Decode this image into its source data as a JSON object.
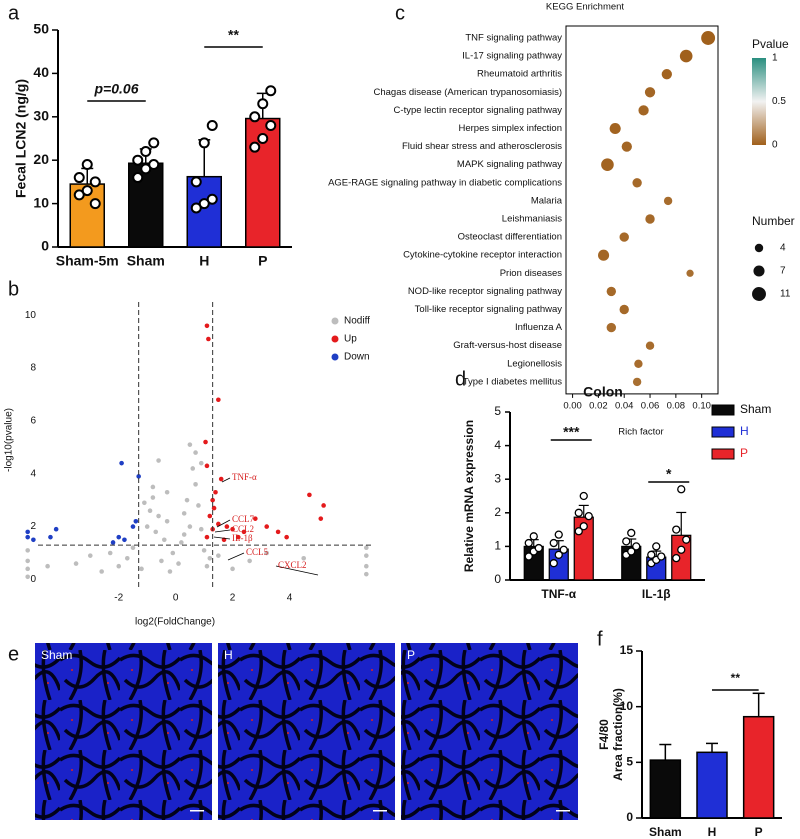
{
  "chart_data": [
    {
      "panel": "a",
      "type": "bar",
      "ylabel": "Fecal LCN2 (ng/g)",
      "categories": [
        "Sham-5m",
        "Sham",
        "H",
        "P"
      ],
      "values": [
        14.5,
        19.3,
        16.2,
        29.6
      ],
      "errors": [
        3.6,
        3.3,
        8.5,
        5.8
      ],
      "colors": [
        "#f39a1e",
        "#0a0a0a",
        "#1f2fd6",
        "#e8242a"
      ],
      "points": [
        [
          12,
          13,
          15,
          16,
          19,
          10
        ],
        [
          16,
          18,
          19,
          20,
          22,
          24
        ],
        [
          9,
          10,
          11,
          15,
          24,
          28
        ],
        [
          23,
          25,
          28,
          30,
          33,
          36
        ]
      ],
      "ylim": [
        0,
        50
      ],
      "yticks": [
        0,
        10,
        20,
        30,
        40,
        50
      ],
      "annotations": [
        "p=0.06",
        "**"
      ]
    },
    {
      "panel": "b",
      "type": "scatter",
      "xlabel": "log2(FoldChange)",
      "ylabel": "-log10(pvalue)",
      "xlim": [
        -5.4,
        6.9
      ],
      "xticks": [
        -2,
        0,
        2,
        4
      ],
      "ylim": [
        -0.4,
        10.5
      ],
      "yticks": [
        0,
        2,
        4,
        6,
        8,
        10
      ],
      "thresholds": {
        "x": [
          -1.3,
          1.3
        ],
        "y": 1.3
      },
      "legend": "top-right",
      "series": [
        {
          "name": "Nodiff",
          "color": "#bdbdbd",
          "x": [
            -5.2,
            -5.2,
            -5.2,
            -5.2,
            6.7,
            6.7,
            6.7,
            6.7,
            -3.5,
            -3.0,
            -2.6,
            -2.3,
            -2.0,
            -1.7,
            -1.5,
            -1.2,
            -1.0,
            -0.9,
            -0.8,
            -0.7,
            -0.6,
            -0.5,
            -0.4,
            -0.3,
            -0.2,
            -0.1,
            0.1,
            0.2,
            0.3,
            0.4,
            0.5,
            0.6,
            0.7,
            0.8,
            0.9,
            1.0,
            1.1,
            1.2,
            1.5,
            2.0,
            2.6,
            3.2,
            -0.6,
            -0.8,
            0.7,
            0.5,
            -0.3,
            0.3,
            -1.1,
            0.9,
            -4.5,
            4.5
          ],
          "values": [
            0.1,
            0.4,
            0.7,
            1.1,
            0.2,
            0.5,
            0.9,
            1.2,
            0.6,
            0.9,
            0.3,
            1.0,
            0.5,
            0.8,
            1.2,
            0.4,
            2.0,
            2.6,
            3.1,
            1.8,
            2.4,
            0.7,
            1.5,
            2.2,
            0.3,
            1.0,
            0.6,
            1.4,
            2.5,
            3.0,
            5.1,
            4.2,
            3.6,
            2.8,
            1.9,
            1.1,
            0.5,
            0.8,
            0.9,
            0.4,
            0.7,
            1.0,
            4.5,
            3.5,
            4.8,
            2.0,
            3.3,
            1.7,
            2.9,
            4.4,
            0.5,
            0.8
          ]
        },
        {
          "name": "Up",
          "color": "#e41a1c",
          "x": [
            1.1,
            1.15,
            1.5,
            1.05,
            1.1,
            1.6,
            1.4,
            1.3,
            1.35,
            1.2,
            1.5,
            1.8,
            2.0,
            2.4,
            2.8,
            3.2,
            3.6,
            3.9,
            4.7,
            5.2,
            5.1,
            1.1,
            1.7,
            2.2,
            1.3
          ],
          "values": [
            9.6,
            9.1,
            6.8,
            5.2,
            4.3,
            3.8,
            3.3,
            3.0,
            2.7,
            2.4,
            2.1,
            2.0,
            1.9,
            1.8,
            2.3,
            2.0,
            1.8,
            1.6,
            3.2,
            2.8,
            2.3,
            1.6,
            1.5,
            1.6,
            1.9
          ]
        },
        {
          "name": "Down",
          "color": "#1f3fc4",
          "x": [
            -5.2,
            -5.2,
            -5.0,
            -4.2,
            -4.4,
            -2.0,
            -2.2,
            -1.8,
            -1.9,
            -1.4,
            -1.5,
            -1.3
          ],
          "values": [
            1.8,
            1.6,
            1.5,
            1.9,
            1.6,
            1.6,
            1.4,
            1.5,
            4.4,
            2.2,
            2.0,
            3.9
          ]
        }
      ],
      "annotations": [
        "TNF-α",
        "CCL7",
        "CCL2",
        "IL-1β",
        "CCL5",
        "CXCL2"
      ]
    },
    {
      "panel": "c",
      "type": "dot",
      "title": "KEGG Enrichment",
      "xlabel": "Rich factor",
      "categories": [
        "TNF signaling pathway",
        "IL-17 signaling pathway",
        "Rheumatoid arthritis",
        "Chagas disease (American trypanosomiasis)",
        "C-type lectin receptor signaling pathway",
        "Herpes simplex infection",
        "Fluid shear stress and atherosclerosis",
        "MAPK signaling pathway",
        "AGE-RAGE signaling pathway in diabetic complications",
        "Malaria",
        "Leishmaniasis",
        "Osteoclast differentiation",
        "Cytokine-cytokine receptor interaction",
        "Prion diseases",
        "NOD-like receptor signaling pathway",
        "Toll-like receptor signaling pathway",
        "Influenza A",
        "Graft-versus-host disease",
        "Legionellosis",
        "Type I diabetes mellitus"
      ],
      "x": [
        0.105,
        0.088,
        0.073,
        0.06,
        0.055,
        0.033,
        0.042,
        0.027,
        0.05,
        0.074,
        0.06,
        0.04,
        0.024,
        0.091,
        0.03,
        0.04,
        0.03,
        0.06,
        0.051,
        0.05
      ],
      "sizes": [
        11,
        9,
        6,
        6,
        6,
        7,
        6,
        9,
        5,
        4,
        5,
        5,
        7,
        3,
        5,
        5,
        5,
        4,
        4,
        4
      ],
      "pvalues": [
        0.0,
        0.0,
        0.01,
        0.02,
        0.02,
        0.01,
        0.02,
        0.01,
        0.03,
        0.04,
        0.03,
        0.03,
        0.02,
        0.05,
        0.03,
        0.03,
        0.04,
        0.04,
        0.04,
        0.05
      ],
      "xlim": [
        -0.002,
        0.108
      ],
      "xticks": [
        {
          "value": 0,
          "label": "0.00"
        },
        {
          "value": 0.02,
          "label": "0.02"
        },
        {
          "value": 0.04,
          "label": "0.04"
        },
        {
          "value": 0.06,
          "label": "0.06"
        },
        {
          "value": 0.08,
          "label": "0.08"
        },
        {
          "value": 0.1,
          "label": "0.10"
        }
      ],
      "color_title": "Pvalue",
      "colorscale": [
        "#a0601c",
        "#f2f2f2",
        "#2a8f80"
      ],
      "clim": [
        0,
        1
      ],
      "cticks": [
        0,
        0.5,
        1
      ],
      "size_title": "Number",
      "size_ticks": [
        4,
        7,
        11
      ]
    },
    {
      "panel": "d",
      "type": "grouped-bar",
      "title": "Colon",
      "ylabel": "Relative mRNA expression",
      "categories": [
        "TNF-α",
        "IL-1β"
      ],
      "ylim": [
        0,
        5
      ],
      "yticks": [
        0,
        1,
        2,
        3,
        4,
        5
      ],
      "series": [
        {
          "name": "Sham",
          "color": "#0a0a0a",
          "values": [
            1.0,
            1.0
          ],
          "errors": [
            0.2,
            0.22
          ],
          "points": [
            [
              0.7,
              0.85,
              0.95,
              1.1,
              1.3
            ],
            [
              0.75,
              0.85,
              1.0,
              1.15,
              1.4
            ]
          ]
        },
        {
          "name": "H",
          "color": "#1f2fd6",
          "values": [
            0.92,
            0.68
          ],
          "errors": [
            0.25,
            0.18
          ],
          "points": [
            [
              0.5,
              0.75,
              0.9,
              1.1,
              1.35
            ],
            [
              0.5,
              0.6,
              0.7,
              0.75,
              1.0
            ]
          ]
        },
        {
          "name": "P",
          "color": "#e8242a",
          "values": [
            1.87,
            1.33
          ],
          "errors": [
            0.35,
            0.68
          ],
          "points": [
            [
              1.45,
              1.6,
              1.9,
              2.0,
              2.5
            ],
            [
              0.65,
              0.9,
              1.2,
              1.5,
              2.7
            ]
          ]
        }
      ],
      "annotations": [
        "***",
        "*"
      ]
    },
    {
      "panel": "f",
      "type": "bar",
      "ylabel": [
        "F4/80",
        "Area fraction(%)"
      ],
      "categories": [
        "Sham",
        "H",
        "P"
      ],
      "values": [
        5.2,
        5.9,
        9.1
      ],
      "errors": [
        1.4,
        0.8,
        2.1
      ],
      "colors": [
        "#0a0a0a",
        "#1f2fd6",
        "#e8242a"
      ],
      "ylim": [
        0,
        15
      ],
      "yticks": [
        0,
        5,
        10,
        15
      ],
      "annotations": [
        "**"
      ]
    }
  ],
  "images": {
    "panel": "e",
    "labels": [
      "Sham",
      "H",
      "P"
    ]
  }
}
